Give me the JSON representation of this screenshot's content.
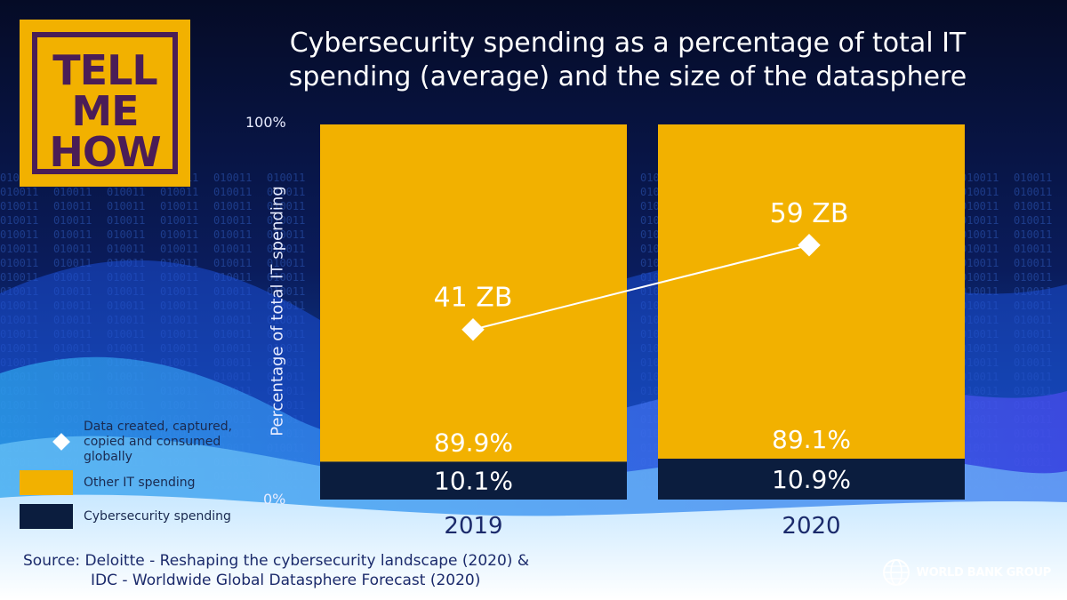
{
  "logo": {
    "lines": [
      "TELL",
      "ME",
      "HOW"
    ]
  },
  "title_lines": [
    "Cybersecurity spending as a percentage of total IT",
    "spending (average) and the size of the datasphere"
  ],
  "source_lines": [
    "Source: Deloitte - Reshaping the cybersecurity landscape (2020) &",
    "IDC -  Worldwide Global Datasphere Forecast (2020)"
  ],
  "brand": {
    "name": "WORLD BANK GROUP"
  },
  "colors": {
    "other": "#f2b100",
    "cyber": "#0b1d3e",
    "line": "#ffffff"
  },
  "chart_data": {
    "type": "bar",
    "stacked": true,
    "percent_scale": true,
    "ylabel": "Percentage of total IT spending",
    "yticks": [
      "100%",
      "0%"
    ],
    "ylim": [
      0,
      100
    ],
    "categories": [
      "2019",
      "2020"
    ],
    "series": [
      {
        "name": "Cybersecurity spending",
        "values": [
          10.1,
          10.9
        ],
        "labels": [
          "10.1%",
          "10.9%"
        ]
      },
      {
        "name": "Other IT spending",
        "values": [
          89.9,
          89.1
        ],
        "labels": [
          "89.9%",
          "89.1%"
        ]
      }
    ],
    "overlay": {
      "type": "line",
      "name": "Data created, captured, copied and consumed globally",
      "values": [
        41,
        59
      ],
      "labels": [
        "41 ZB",
        "59 ZB"
      ]
    }
  }
}
